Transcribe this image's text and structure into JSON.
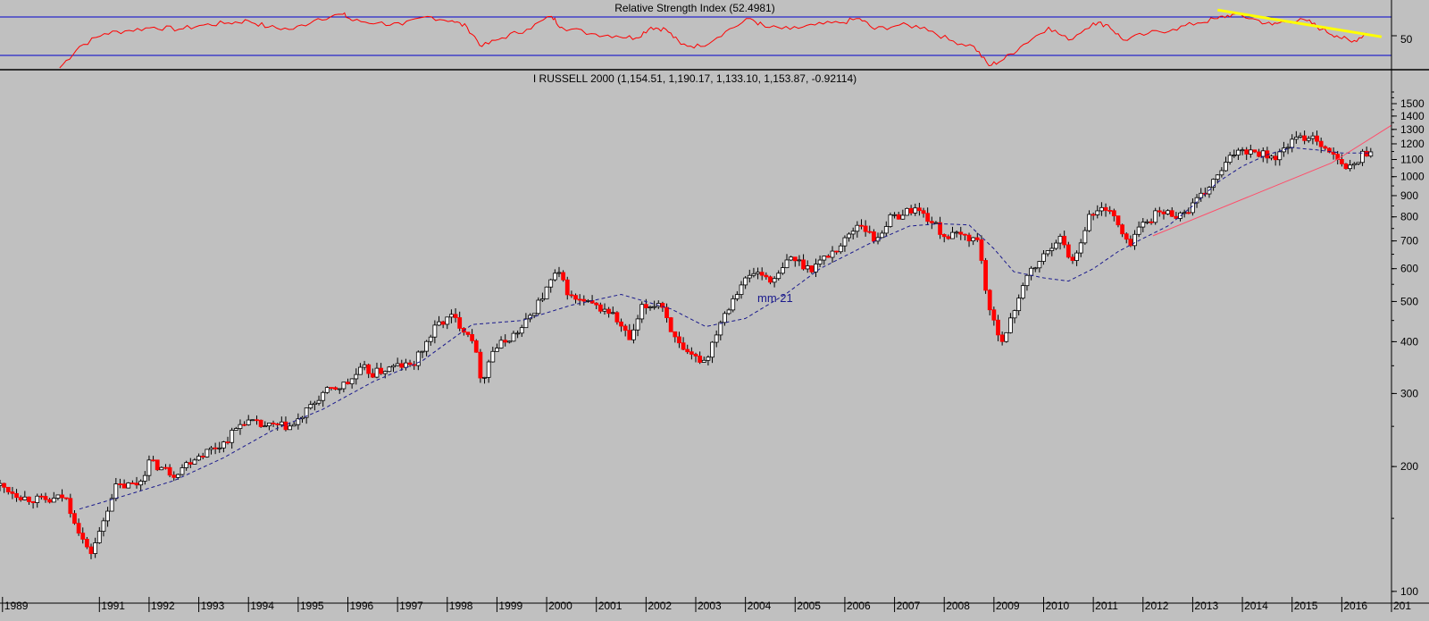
{
  "colors": {
    "background": "#c0c0c0",
    "rsi_line": "#ff0000",
    "rsi_bands": "#0000cc",
    "up_candle": "#ffffff",
    "down_candle": "#ff0000",
    "candle_outline": "#000000",
    "moving_average": "#1a1a8c",
    "support_trendline": "#ff4d6a",
    "rsi_trendline": "#ffff00"
  },
  "rsi_panel": {
    "title": "Relative Strength Index (52.4981)",
    "ytick_label": "50"
  },
  "price_panel": {
    "title": "I RUSSELL 2000 (1,154.51, 1,190.17, 1,133.10, 1,153.87, -0.92114)",
    "ma_label": "mm 21",
    "year_labels": [
      "1989",
      "1991",
      "1992",
      "1993",
      "1994",
      "1995",
      "1996",
      "1997",
      "1998",
      "1999",
      "2000",
      "2001",
      "2002",
      "2003",
      "2004",
      "2005",
      "2006",
      "2007",
      "2008",
      "2009",
      "2010",
      "2011",
      "2012",
      "2013",
      "2014",
      "2015",
      "2016",
      "201"
    ],
    "price_ticks": [
      "100",
      "200",
      "300",
      "400",
      "500",
      "600",
      "700",
      "800",
      "900",
      "1000",
      "1100",
      "1200",
      "1300",
      "1400",
      "1500"
    ]
  },
  "chart_data": {
    "type": "candlestick",
    "title": "I RUSSELL 2000 (1,154.51, 1,190.17, 1,133.10, 1,153.87, -0.92114)",
    "scale": "log",
    "ylim": [
      97,
      1640
    ],
    "xlim": [
      1989.0,
      2017.0
    ],
    "yticks": [
      100,
      200,
      300,
      400,
      500,
      600,
      700,
      800,
      900,
      1000,
      1100,
      1200,
      1300,
      1400,
      1500
    ],
    "price_path": [
      [
        1989.0,
        180
      ],
      [
        1989.5,
        168
      ],
      [
        1990.0,
        165
      ],
      [
        1990.3,
        170
      ],
      [
        1990.8,
        122
      ],
      [
        1991.0,
        138
      ],
      [
        1991.3,
        178
      ],
      [
        1991.8,
        182
      ],
      [
        1992.0,
        205
      ],
      [
        1992.5,
        192
      ],
      [
        1992.9,
        210
      ],
      [
        1993.5,
        228
      ],
      [
        1993.9,
        258
      ],
      [
        1994.3,
        250
      ],
      [
        1994.9,
        250
      ],
      [
        1995.5,
        300
      ],
      [
        1996.0,
        318
      ],
      [
        1996.3,
        345
      ],
      [
        1996.5,
        335
      ],
      [
        1997.0,
        350
      ],
      [
        1997.3,
        350
      ],
      [
        1997.8,
        440
      ],
      [
        1998.1,
        460
      ],
      [
        1998.5,
        410
      ],
      [
        1998.7,
        320
      ],
      [
        1998.9,
        380
      ],
      [
        1999.5,
        430
      ],
      [
        1999.9,
        510
      ],
      [
        2000.2,
        590
      ],
      [
        2000.5,
        510
      ],
      [
        2000.9,
        490
      ],
      [
        2001.3,
        470
      ],
      [
        2001.7,
        400
      ],
      [
        2001.9,
        480
      ],
      [
        2002.3,
        500
      ],
      [
        2002.6,
        400
      ],
      [
        2002.8,
        370
      ],
      [
        2003.2,
        360
      ],
      [
        2003.5,
        450
      ],
      [
        2003.9,
        550
      ],
      [
        2004.2,
        590
      ],
      [
        2004.6,
        560
      ],
      [
        2004.9,
        640
      ],
      [
        2005.3,
        600
      ],
      [
        2005.9,
        680
      ],
      [
        2006.3,
        780
      ],
      [
        2006.6,
        700
      ],
      [
        2006.9,
        790
      ],
      [
        2007.4,
        840
      ],
      [
        2007.7,
        790
      ],
      [
        2008.0,
        720
      ],
      [
        2008.4,
        720
      ],
      [
        2008.7,
        700
      ],
      [
        2008.9,
        470
      ],
      [
        2009.2,
        400
      ],
      [
        2009.6,
        560
      ],
      [
        2009.9,
        620
      ],
      [
        2010.3,
        720
      ],
      [
        2010.6,
        620
      ],
      [
        2010.9,
        800
      ],
      [
        2011.3,
        850
      ],
      [
        2011.7,
        680
      ],
      [
        2011.9,
        750
      ],
      [
        2012.3,
        820
      ],
      [
        2012.8,
        810
      ],
      [
        2013.2,
        900
      ],
      [
        2013.6,
        1040
      ],
      [
        2013.9,
        1170
      ],
      [
        2014.3,
        1150
      ],
      [
        2014.7,
        1110
      ],
      [
        2014.95,
        1210
      ],
      [
        2015.4,
        1260
      ],
      [
        2015.7,
        1170
      ],
      [
        2016.0,
        1060
      ],
      [
        2016.2,
        1050
      ],
      [
        2016.4,
        1130
      ],
      [
        2016.6,
        1154
      ]
    ],
    "moving_average": {
      "name": "mm 21",
      "points": [
        [
          1990.6,
          158
        ],
        [
          1991.5,
          170
        ],
        [
          1992.5,
          185
        ],
        [
          1993.5,
          210
        ],
        [
          1994.5,
          245
        ],
        [
          1995.5,
          275
        ],
        [
          1996.5,
          320
        ],
        [
          1997.5,
          360
        ],
        [
          1998.5,
          440
        ],
        [
          1999.5,
          450
        ],
        [
          2000.5,
          490
        ],
        [
          2001.5,
          520
        ],
        [
          2002.5,
          480
        ],
        [
          2003.2,
          435
        ],
        [
          2004.0,
          455
        ],
        [
          2004.8,
          520
        ],
        [
          2005.5,
          600
        ],
        [
          2006.5,
          690
        ],
        [
          2007.3,
          760
        ],
        [
          2007.9,
          770
        ],
        [
          2008.5,
          765
        ],
        [
          2009.0,
          670
        ],
        [
          2009.4,
          590
        ],
        [
          2010.0,
          570
        ],
        [
          2010.5,
          560
        ],
        [
          2011.0,
          600
        ],
        [
          2011.5,
          660
        ],
        [
          2012.0,
          710
        ],
        [
          2012.5,
          760
        ],
        [
          2013.0,
          850
        ],
        [
          2013.5,
          970
        ],
        [
          2014.0,
          1060
        ],
        [
          2014.5,
          1130
        ],
        [
          2015.0,
          1175
        ],
        [
          2015.5,
          1160
        ],
        [
          2016.0,
          1140
        ],
        [
          2016.6,
          1140
        ]
      ]
    },
    "support_trendline": [
      [
        2012.2,
        720
      ],
      [
        2015.8,
        1080
      ],
      [
        2017.0,
        1330
      ]
    ],
    "rsi": {
      "title": "Relative Strength Index (52.4981)",
      "last": 52.4981,
      "bands": [
        70,
        30
      ],
      "ytick": 50,
      "ylim": [
        20,
        80
      ],
      "points": [
        [
          1990.2,
          20
        ],
        [
          1990.6,
          40
        ],
        [
          1991.1,
          52
        ],
        [
          1991.6,
          55
        ],
        [
          1992.1,
          58
        ],
        [
          1992.6,
          56
        ],
        [
          1993.1,
          60
        ],
        [
          1993.6,
          62
        ],
        [
          1994.0,
          64
        ],
        [
          1994.4,
          58
        ],
        [
          1994.9,
          56
        ],
        [
          1995.4,
          66
        ],
        [
          1995.9,
          70
        ],
        [
          1996.1,
          64
        ],
        [
          1996.6,
          62
        ],
        [
          1997.1,
          60
        ],
        [
          1997.6,
          68
        ],
        [
          1998.1,
          64
        ],
        [
          1998.4,
          58
        ],
        [
          1998.7,
          40
        ],
        [
          1999.1,
          48
        ],
        [
          1999.6,
          56
        ],
        [
          2000.1,
          68
        ],
        [
          2000.3,
          58
        ],
        [
          2000.9,
          52
        ],
        [
          2001.4,
          50
        ],
        [
          2001.8,
          48
        ],
        [
          2002.1,
          58
        ],
        [
          2002.4,
          56
        ],
        [
          2002.7,
          42
        ],
        [
          2003.1,
          40
        ],
        [
          2003.6,
          54
        ],
        [
          2004.1,
          66
        ],
        [
          2004.4,
          58
        ],
        [
          2004.9,
          56
        ],
        [
          2005.4,
          60
        ],
        [
          2005.9,
          62
        ],
        [
          2006.3,
          66
        ],
        [
          2006.6,
          56
        ],
        [
          2007.1,
          60
        ],
        [
          2007.6,
          58
        ],
        [
          2008.1,
          46
        ],
        [
          2008.6,
          40
        ],
        [
          2008.9,
          22
        ],
        [
          2009.2,
          28
        ],
        [
          2009.6,
          42
        ],
        [
          2010.1,
          58
        ],
        [
          2010.5,
          46
        ],
        [
          2011.0,
          62
        ],
        [
          2011.3,
          60
        ],
        [
          2011.6,
          46
        ],
        [
          2012.1,
          52
        ],
        [
          2012.6,
          56
        ],
        [
          2013.1,
          62
        ],
        [
          2013.5,
          66
        ],
        [
          2013.8,
          70
        ],
        [
          2014.2,
          66
        ],
        [
          2014.6,
          60
        ],
        [
          2014.9,
          64
        ],
        [
          2015.3,
          64
        ],
        [
          2015.6,
          56
        ],
        [
          2015.9,
          50
        ],
        [
          2016.2,
          44
        ],
        [
          2016.5,
          52.4981
        ]
      ],
      "trendline": [
        [
          2013.5,
          74
        ],
        [
          2016.8,
          49
        ]
      ]
    }
  }
}
